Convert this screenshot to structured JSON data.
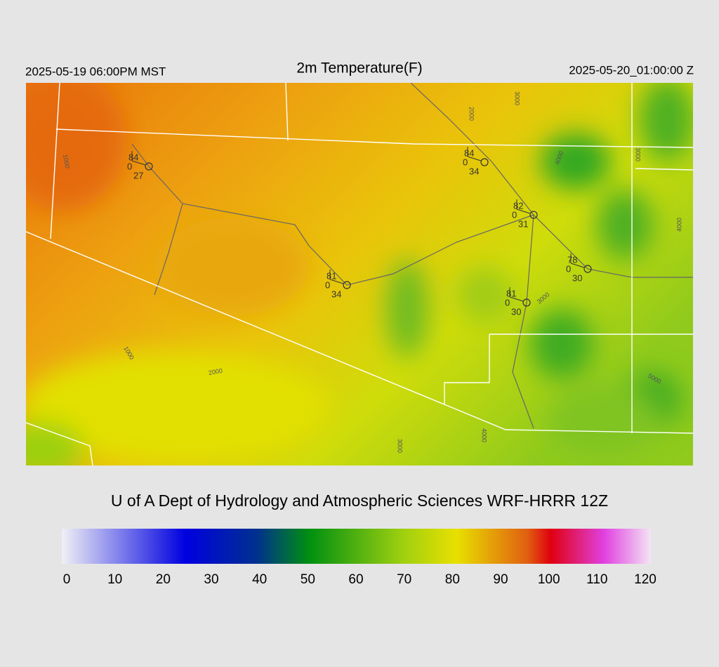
{
  "header": {
    "left": "2025-05-19 06:00PM MST",
    "title": "2m Temperature(F)",
    "right": "2025-05-20_01:00:00 Z"
  },
  "stations": [
    {
      "temp": 84,
      "wind": 0,
      "dewpoint": 27
    },
    {
      "temp": 84,
      "wind": 0,
      "dewpoint": 34
    },
    {
      "temp": 82,
      "wind": 0,
      "dewpoint": 31
    },
    {
      "temp": 78,
      "wind": 0,
      "dewpoint": 30
    },
    {
      "temp": 81,
      "wind": 0,
      "dewpoint": 34
    },
    {
      "temp": 81,
      "wind": 0,
      "dewpoint": 30
    }
  ],
  "contour_labels": [
    1000,
    1000,
    2000,
    2000,
    3000,
    4000,
    3000,
    4000,
    3000,
    5000,
    3000,
    4000
  ],
  "credit": "U of A Dept of Hydrology and Atmospheric Sciences WRF-HRRR 12Z",
  "colorbar": {
    "range": [
      0,
      120
    ],
    "ticks": [
      0,
      10,
      20,
      30,
      40,
      50,
      60,
      70,
      80,
      90,
      100,
      110,
      120
    ]
  }
}
